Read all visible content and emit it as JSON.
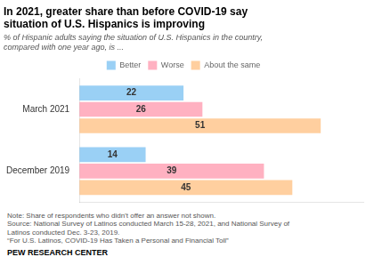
{
  "chart_data": {
    "type": "bar",
    "orientation": "horizontal",
    "title": "In 2021, greater share than before COVID-19 say\nsituation of U.S. Hispanics is improving",
    "subtitle": "% of Hispanic adults saying the situation of U.S. Hispanics in the country,\ncompared with one year ago, is ...",
    "note": "Note: Share of respondents who didn’t offer an answer not shown.\nSource: National Survey of Latinos conducted March 15-28, 2021, and National Survey of\nLatinos conducted Dec. 3-23, 2019.\n“For U.S. Latinos, COVID-19 Has Taken a Personal and Financial Toll”",
    "source": "PEW RESEARCH CENTER",
    "categories": [
      "March 2021",
      "December 2019"
    ],
    "series": [
      {
        "name": "Better",
        "values": [
          22,
          14
        ]
      },
      {
        "name": "Worse",
        "values": [
          26,
          39
        ]
      },
      {
        "name": "About the same",
        "values": [
          51,
          45
        ]
      }
    ],
    "xlim": [
      0,
      60
    ],
    "grid": false,
    "legend": "top",
    "data_labels": true,
    "tick_labels": "y"
  }
}
